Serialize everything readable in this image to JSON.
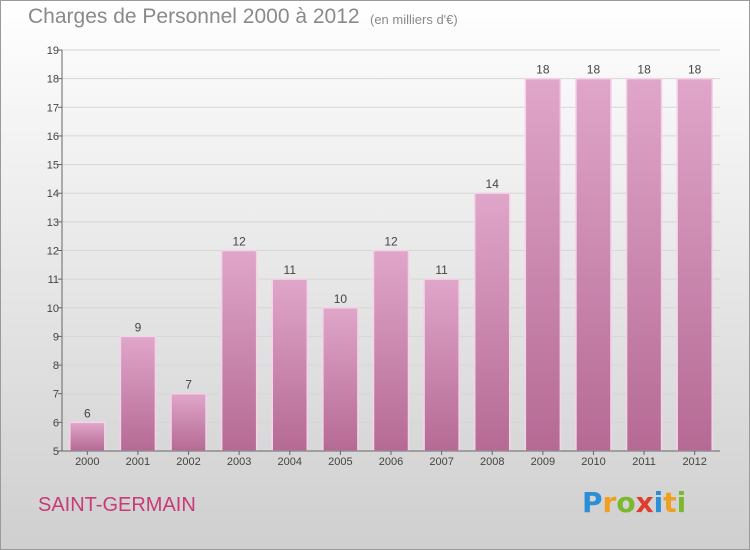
{
  "title": "Charges de Personnel 2000 à 2012",
  "subtitle": "(en milliers d'€)",
  "location": "SAINT-GERMAIN",
  "logo": {
    "text": "Proxiti",
    "letters": [
      {
        "ch": "P",
        "color": "#2a8fd6"
      },
      {
        "ch": "r",
        "color": "#f0a020"
      },
      {
        "ch": "o",
        "color": "#7ab82e"
      },
      {
        "ch": "x",
        "color": "#e23c2c"
      },
      {
        "ch": "i",
        "color": "#2a8fd6"
      },
      {
        "ch": "t",
        "color": "#f0a020"
      },
      {
        "ch": "i",
        "color": "#7ab82e"
      }
    ]
  },
  "colors": {
    "bar_top": "#e0a6ca",
    "bar_bottom": "#b56a94",
    "bar_stroke": "#f3d3e6",
    "grid": "#d6d6d6",
    "axis": "#666666",
    "label": "#444444"
  },
  "chart_data": {
    "type": "bar",
    "categories": [
      "2000",
      "2001",
      "2002",
      "2003",
      "2004",
      "2005",
      "2006",
      "2007",
      "2008",
      "2009",
      "2010",
      "2011",
      "2012"
    ],
    "values": [
      6,
      9,
      7,
      12,
      11,
      10,
      12,
      11,
      14,
      18,
      18,
      18,
      18
    ],
    "ylim": [
      5,
      19
    ],
    "yticks": [
      5,
      6,
      7,
      8,
      9,
      10,
      11,
      12,
      13,
      14,
      15,
      16,
      17,
      18,
      19
    ],
    "grid": true,
    "data_labels": true
  }
}
